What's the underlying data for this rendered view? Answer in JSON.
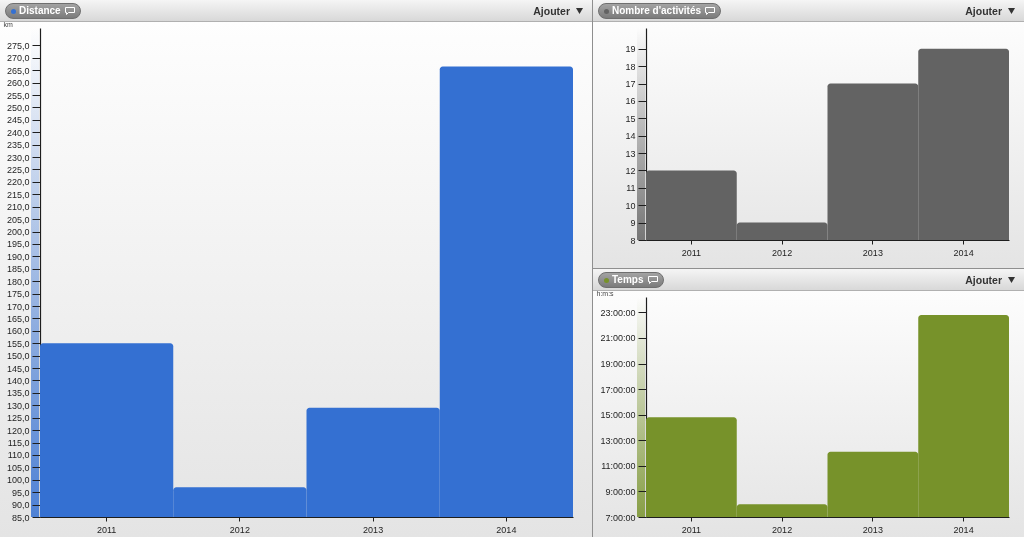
{
  "chart_data": [
    {
      "type": "bar",
      "title": "Distance",
      "ylabel": "km",
      "categories": [
        "2011",
        "2012",
        "2013",
        "2014"
      ],
      "values": [
        155,
        97,
        129,
        266.5
      ],
      "color": "#3470d2",
      "ylim": [
        85,
        282
      ],
      "yticks": [
        {
          "value": 85,
          "label": "85,0"
        },
        {
          "value": 90,
          "label": "90,0"
        },
        {
          "value": 95,
          "label": "95,0"
        },
        {
          "value": 100,
          "label": "100,0"
        },
        {
          "value": 105,
          "label": "105,0"
        },
        {
          "value": 110,
          "label": "110,0"
        },
        {
          "value": 115,
          "label": "115,0"
        },
        {
          "value": 120,
          "label": "120,0"
        },
        {
          "value": 125,
          "label": "125,0"
        },
        {
          "value": 130,
          "label": "130,0"
        },
        {
          "value": 135,
          "label": "135,0"
        },
        {
          "value": 140,
          "label": "140,0"
        },
        {
          "value": 145,
          "label": "145,0"
        },
        {
          "value": 150,
          "label": "150,0"
        },
        {
          "value": 155,
          "label": "155,0"
        },
        {
          "value": 160,
          "label": "160,0"
        },
        {
          "value": 165,
          "label": "165,0"
        },
        {
          "value": 170,
          "label": "170,0"
        },
        {
          "value": 175,
          "label": "175,0"
        },
        {
          "value": 180,
          "label": "180,0"
        },
        {
          "value": 185,
          "label": "185,0"
        },
        {
          "value": 190,
          "label": "190,0"
        },
        {
          "value": 195,
          "label": "195,0"
        },
        {
          "value": 200,
          "label": "200,0"
        },
        {
          "value": 205,
          "label": "205,0"
        },
        {
          "value": 210,
          "label": "210,0"
        },
        {
          "value": 215,
          "label": "215,0"
        },
        {
          "value": 220,
          "label": "220,0"
        },
        {
          "value": 225,
          "label": "225,0"
        },
        {
          "value": 230,
          "label": "230,0"
        },
        {
          "value": 235,
          "label": "235,0"
        },
        {
          "value": 240,
          "label": "240,0"
        },
        {
          "value": 245,
          "label": "245,0"
        },
        {
          "value": 250,
          "label": "250,0"
        },
        {
          "value": 255,
          "label": "255,0"
        },
        {
          "value": 260,
          "label": "260,0"
        },
        {
          "value": 265,
          "label": "265,0"
        },
        {
          "value": 270,
          "label": "270,0"
        },
        {
          "value": 275,
          "label": "275,0"
        }
      ],
      "annotations": [
        "Ajouter"
      ]
    },
    {
      "type": "bar",
      "title": "Nombre d'activités",
      "categories": [
        "2011",
        "2012",
        "2013",
        "2014"
      ],
      "values": [
        12,
        9,
        17,
        19
      ],
      "color": "#636363",
      "ylim": [
        8,
        20.2
      ],
      "yticks": [
        8,
        9,
        10,
        11,
        12,
        13,
        14,
        15,
        16,
        17,
        18,
        19
      ],
      "annotations": [
        "Ajouter"
      ]
    },
    {
      "type": "bar",
      "title": "Temps",
      "ylabel": "h:m:s",
      "categories": [
        "2011",
        "2012",
        "2013",
        "2014"
      ],
      "values": [
        14.8,
        8.0,
        12.1,
        22.8
      ],
      "color": "#77922a",
      "ylim": [
        7,
        24.2
      ],
      "yticks": [
        {
          "value": 7,
          "label": "7:00:00"
        },
        {
          "value": 9,
          "label": "9:00:00"
        },
        {
          "value": 11,
          "label": "11:00:00"
        },
        {
          "value": 13,
          "label": "13:00:00"
        },
        {
          "value": 15,
          "label": "15:00:00"
        },
        {
          "value": 17,
          "label": "17:00:00"
        },
        {
          "value": 19,
          "label": "19:00:00"
        },
        {
          "value": 21,
          "label": "21:00:00"
        },
        {
          "value": 23,
          "label": "23:00:00"
        }
      ],
      "annotations": [
        "Ajouter"
      ]
    }
  ]
}
